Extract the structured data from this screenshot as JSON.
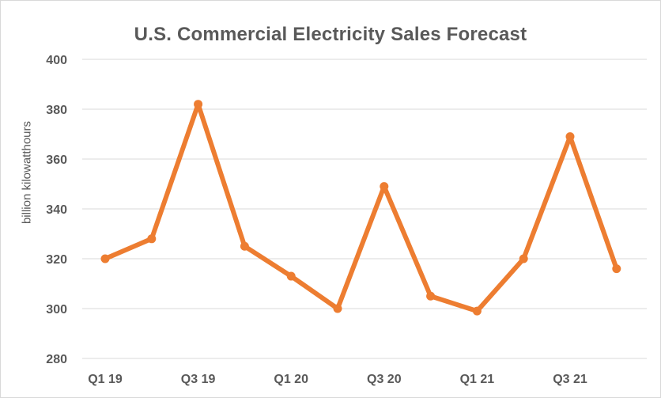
{
  "colors": {
    "series": "#ed7d31",
    "text": "#595959",
    "grid": "#d9d9d9"
  },
  "chart_data": {
    "type": "line",
    "title": "U.S. Commercial Electricity Sales Forecast",
    "xlabel": "",
    "ylabel": "billion kilowatthours",
    "ylim": [
      280,
      400
    ],
    "yticks": [
      280,
      300,
      320,
      340,
      360,
      380,
      400
    ],
    "grid": true,
    "legend": "none",
    "categories": [
      "Q1 19",
      "Q2 19",
      "Q3 19",
      "Q4 19",
      "Q1 20",
      "Q2 20",
      "Q3 20",
      "Q4 20",
      "Q1 21",
      "Q2 21",
      "Q3 21",
      "Q4 21"
    ],
    "x_tick_labels": [
      "Q1 19",
      "",
      "Q3 19",
      "",
      "Q1 20",
      "",
      "Q3 20",
      "",
      "Q1 21",
      "",
      "Q3 21",
      ""
    ],
    "series": [
      {
        "values": [
          320,
          328,
          382,
          325,
          313,
          300,
          349,
          305,
          299,
          320,
          369,
          316
        ]
      }
    ]
  }
}
